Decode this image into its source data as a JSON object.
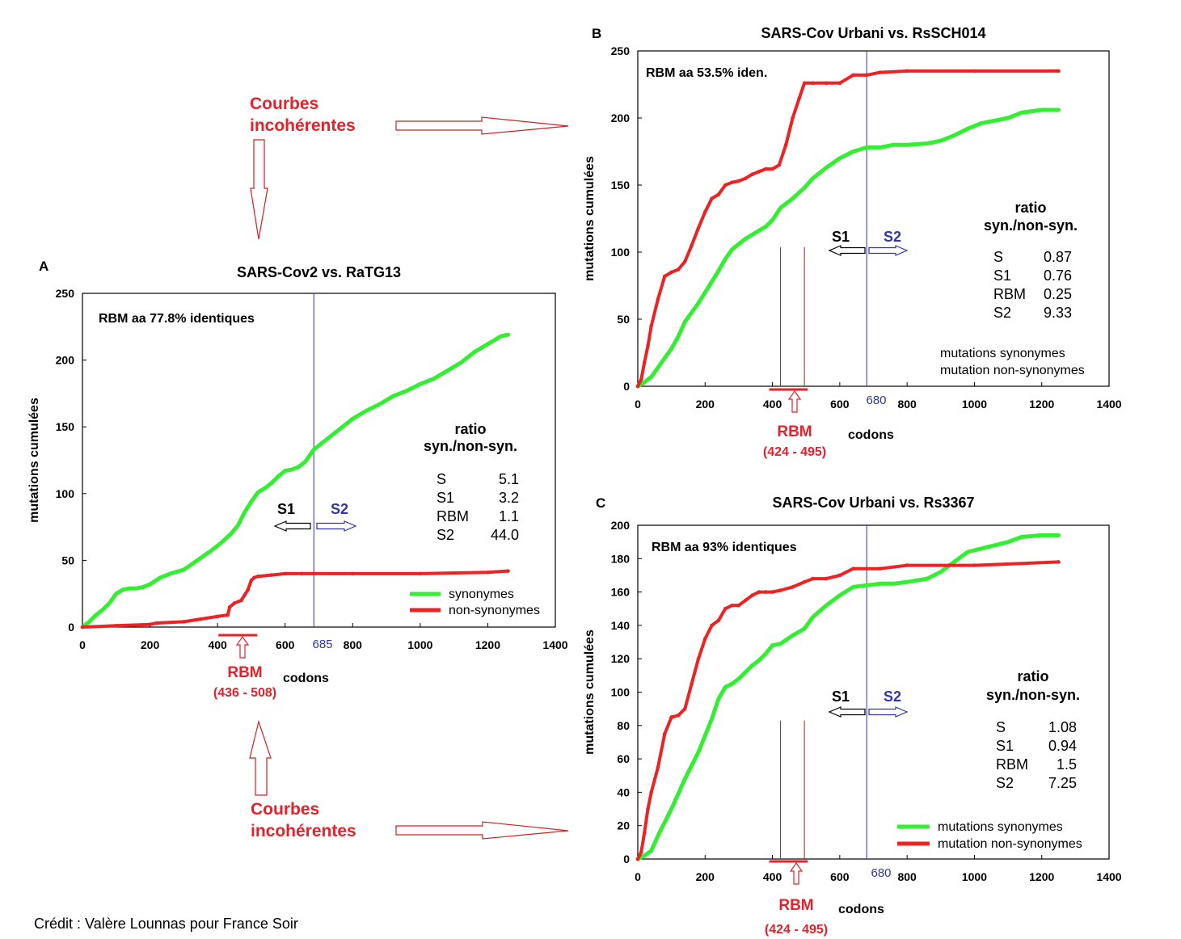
{
  "colors": {
    "synonymous": "#33ee33",
    "nonsynonymous": "#ee2222",
    "s2": "#3333aa",
    "annot": "#e8202a",
    "text": "#000000"
  },
  "annotations": {
    "courbes_top": [
      "Courbes",
      "incohérentes"
    ],
    "courbes_bottom": [
      "Courbes",
      "incohérentes"
    ],
    "credit": "Crédit : Valère Lounnas pour France Soir"
  },
  "chart_data": [
    {
      "type": "line",
      "panel": "A",
      "title": "SARS-Cov2 vs. RaTG13",
      "xlabel": "codons",
      "ylabel": "mutations cumulées",
      "xlim": [
        0,
        1400
      ],
      "ylim": [
        0,
        250
      ],
      "xticks": [
        "0",
        "200",
        "400",
        "600",
        "800",
        "1000",
        "1200",
        "1400"
      ],
      "yticks": [
        "0",
        "50",
        "100",
        "150",
        "200",
        "250"
      ],
      "identity_note": "RBM aa 77.8% identiques",
      "s2_boundary": {
        "x": 685,
        "label": "685"
      },
      "rbm": {
        "label": "RBM",
        "range_label": "(436 - 508)",
        "start": 436,
        "end": 508
      },
      "region_labels": {
        "s1": "S1",
        "s2": "S2"
      },
      "ratio_title": [
        "ratio",
        "syn./non-syn."
      ],
      "ratios": [
        {
          "name": "S",
          "value": "5.1"
        },
        {
          "name": "S1",
          "value": "3.2"
        },
        {
          "name": "RBM",
          "value": "1.1"
        },
        {
          "name": "S2",
          "value": "44.0"
        }
      ],
      "legend": [
        "synonymes",
        "non-synonymes"
      ],
      "series": [
        {
          "name": "synonymes",
          "x": [
            0,
            20,
            40,
            60,
            80,
            100,
            120,
            140,
            160,
            180,
            200,
            230,
            260,
            300,
            340,
            380,
            410,
            440,
            460,
            480,
            500,
            520,
            540,
            560,
            580,
            600,
            620,
            640,
            660,
            685,
            720,
            760,
            800,
            840,
            880,
            920,
            960,
            1000,
            1040,
            1080,
            1120,
            1160,
            1200,
            1240,
            1260
          ],
          "y": [
            0,
            4,
            9,
            13,
            18,
            25,
            28,
            29,
            29,
            30,
            32,
            37,
            40,
            43,
            50,
            57,
            63,
            70,
            76,
            86,
            94,
            101,
            104,
            108,
            113,
            117,
            118,
            120,
            124,
            133,
            140,
            148,
            156,
            162,
            167,
            173,
            177,
            182,
            186,
            192,
            198,
            206,
            212,
            218,
            219
          ]
        },
        {
          "name": "non-synonymes",
          "x": [
            0,
            100,
            200,
            220,
            300,
            350,
            400,
            430,
            436,
            450,
            470,
            480,
            490,
            500,
            508,
            520,
            560,
            600,
            650,
            685,
            800,
            1000,
            1200,
            1260
          ],
          "y": [
            0,
            1,
            2,
            3,
            4,
            6,
            8,
            9,
            15,
            18,
            20,
            24,
            28,
            35,
            37,
            38,
            39,
            40,
            40,
            40,
            40,
            40,
            41,
            42
          ]
        }
      ]
    },
    {
      "type": "line",
      "panel": "B",
      "title": "SARS-Cov Urbani vs.  RsSCH014",
      "xlabel": "codons",
      "ylabel": "mutations cumulées",
      "xlim": [
        0,
        1400
      ],
      "ylim": [
        0,
        250
      ],
      "xticks": [
        "0",
        "200",
        "400",
        "600",
        "800",
        "1000",
        "1200",
        "1400"
      ],
      "yticks": [
        "0",
        "50",
        "100",
        "150",
        "200",
        "250"
      ],
      "identity_note": "RBM aa 53.5% iden.",
      "s2_boundary": {
        "x": 680,
        "label": "680"
      },
      "rbm": {
        "label": "RBM",
        "range_label": "(424 - 495)",
        "start": 424,
        "end": 495
      },
      "region_labels": {
        "s1": "S1",
        "s2": "S2"
      },
      "ratio_title": [
        "ratio",
        "syn./non-syn."
      ],
      "ratios": [
        {
          "name": "S",
          "value": "0.87"
        },
        {
          "name": "S1",
          "value": "0.76"
        },
        {
          "name": "RBM",
          "value": "0.25"
        },
        {
          "name": "S2",
          "value": "9.33"
        }
      ],
      "legend": [
        "mutations synonymes",
        "mutation non-synonymes"
      ],
      "series": [
        {
          "name": "mutations synonymes",
          "x": [
            0,
            20,
            40,
            60,
            80,
            100,
            120,
            140,
            160,
            180,
            200,
            220,
            240,
            260,
            280,
            300,
            320,
            340,
            360,
            380,
            400,
            424,
            460,
            495,
            520,
            560,
            600,
            640,
            680,
            720,
            760,
            800,
            860,
            900,
            940,
            980,
            1020,
            1060,
            1100,
            1140,
            1200,
            1250
          ],
          "y": [
            0,
            3,
            7,
            14,
            21,
            28,
            37,
            48,
            55,
            62,
            70,
            78,
            86,
            95,
            102,
            106,
            110,
            113,
            116,
            119,
            124,
            133,
            140,
            148,
            155,
            163,
            170,
            175,
            178,
            178,
            180,
            180,
            181,
            183,
            187,
            192,
            196,
            198,
            200,
            204,
            206,
            206
          ]
        },
        {
          "name": "mutation non-synonymes",
          "x": [
            0,
            10,
            20,
            30,
            40,
            60,
            80,
            100,
            120,
            140,
            160,
            180,
            200,
            220,
            240,
            260,
            280,
            300,
            320,
            340,
            360,
            380,
            400,
            420,
            440,
            460,
            480,
            495,
            520,
            560,
            600,
            640,
            680,
            720,
            800,
            1000,
            1250
          ],
          "y": [
            0,
            5,
            18,
            30,
            45,
            65,
            82,
            85,
            87,
            93,
            105,
            118,
            130,
            140,
            143,
            150,
            152,
            153,
            155,
            158,
            160,
            162,
            162,
            165,
            180,
            200,
            215,
            226,
            226,
            226,
            226,
            232,
            232,
            234,
            235,
            235,
            235
          ]
        }
      ]
    },
    {
      "type": "line",
      "panel": "C",
      "title": "SARS-Cov Urbani vs. Rs3367",
      "xlabel": "codons",
      "ylabel": "mutations cumulées",
      "xlim": [
        0,
        1400
      ],
      "ylim": [
        0,
        200
      ],
      "xticks": [
        "0",
        "200",
        "400",
        "600",
        "800",
        "1000",
        "1200",
        "1400"
      ],
      "yticks": [
        "0",
        "20",
        "40",
        "60",
        "80",
        "100",
        "120",
        "140",
        "160",
        "180",
        "200"
      ],
      "identity_note": "RBM aa 93% identiques",
      "s2_boundary": {
        "x": 680,
        "label": "680"
      },
      "rbm": {
        "label": "RBM",
        "range_label": "(424 - 495)",
        "start": 424,
        "end": 495
      },
      "region_labels": {
        "s1": "S1",
        "s2": "S2"
      },
      "ratio_title": [
        "ratio",
        "syn./non-syn."
      ],
      "ratios": [
        {
          "name": "S",
          "value": "1.08"
        },
        {
          "name": "S1",
          "value": "0.94"
        },
        {
          "name": "RBM",
          "value": "1.5"
        },
        {
          "name": "S2",
          "value": "7.25"
        }
      ],
      "legend": [
        "mutations synonymes",
        "mutation non-synonymes"
      ],
      "series": [
        {
          "name": "mutations synonymes",
          "x": [
            0,
            20,
            40,
            60,
            80,
            100,
            120,
            140,
            160,
            180,
            200,
            220,
            240,
            260,
            280,
            300,
            320,
            340,
            360,
            380,
            400,
            424,
            460,
            495,
            520,
            560,
            600,
            640,
            680,
            720,
            760,
            800,
            860,
            900,
            940,
            980,
            1020,
            1060,
            1100,
            1140,
            1200,
            1250
          ],
          "y": [
            0,
            2,
            5,
            14,
            22,
            30,
            39,
            48,
            56,
            64,
            74,
            84,
            96,
            103,
            105,
            108,
            112,
            116,
            119,
            123,
            128,
            129,
            134,
            138,
            145,
            152,
            158,
            163,
            164,
            165,
            165,
            166,
            168,
            172,
            178,
            184,
            186,
            188,
            190,
            193,
            194,
            194
          ]
        },
        {
          "name": "mutation non-synonymes",
          "x": [
            0,
            10,
            20,
            30,
            40,
            60,
            80,
            100,
            120,
            140,
            160,
            180,
            200,
            220,
            240,
            260,
            280,
            300,
            320,
            340,
            360,
            380,
            400,
            424,
            460,
            495,
            520,
            560,
            600,
            640,
            680,
            720,
            800,
            1000,
            1250
          ],
          "y": [
            0,
            4,
            16,
            30,
            40,
            55,
            75,
            85,
            86,
            90,
            105,
            120,
            132,
            140,
            143,
            150,
            152,
            152,
            155,
            158,
            160,
            160,
            160,
            161,
            163,
            166,
            168,
            168,
            170,
            174,
            174,
            174,
            176,
            176,
            178
          ]
        }
      ]
    }
  ]
}
